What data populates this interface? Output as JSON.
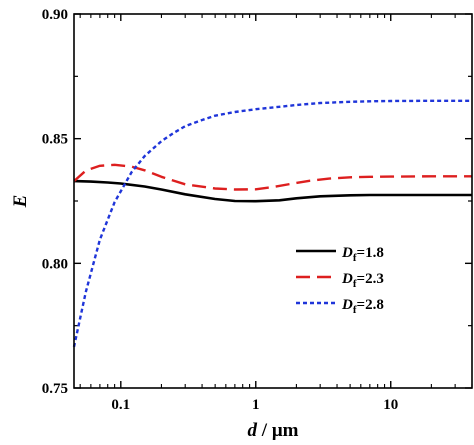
{
  "chart_data": {
    "type": "line",
    "title": "",
    "xlabel": "d / μm",
    "ylabel": "E",
    "x_scale": "log",
    "xlim": [
      0.045,
      40
    ],
    "ylim": [
      0.75,
      0.9
    ],
    "x_ticks": [
      0.1,
      1,
      10
    ],
    "x_tick_labels": [
      "0.1",
      "1",
      "10"
    ],
    "y_ticks": [
      0.75,
      0.8,
      0.85,
      0.9
    ],
    "y_tick_labels": [
      "0.75",
      "0.80",
      "0.85",
      "0.90"
    ],
    "legend": {
      "placement": "center-right",
      "entries": [
        {
          "name_main": "D",
          "name_sub": "f",
          "name_value": "=1.8"
        },
        {
          "name_main": "D",
          "name_sub": "f",
          "name_value": "=2.3"
        },
        {
          "name_main": "D",
          "name_sub": "f",
          "name_value": "=2.8"
        }
      ]
    },
    "series": [
      {
        "name": "Df=1.8",
        "color": "#000000",
        "style": "solid",
        "x": [
          0.045,
          0.06,
          0.08,
          0.1,
          0.15,
          0.2,
          0.3,
          0.5,
          0.7,
          1.0,
          1.5,
          2,
          3,
          5,
          7,
          10,
          20,
          40
        ],
        "y": [
          0.833,
          0.8328,
          0.8324,
          0.832,
          0.8308,
          0.8296,
          0.8277,
          0.8258,
          0.825,
          0.8249,
          0.8253,
          0.8261,
          0.8269,
          0.8273,
          0.8274,
          0.8274,
          0.8274,
          0.8274
        ]
      },
      {
        "name": "Df=2.3",
        "color": "#dd1f1f",
        "style": "dashed",
        "x": [
          0.045,
          0.055,
          0.07,
          0.09,
          0.12,
          0.15,
          0.2,
          0.3,
          0.5,
          0.7,
          1.0,
          1.3,
          1.8,
          2.5,
          3.5,
          5,
          7,
          10,
          20,
          40
        ],
        "y": [
          0.833,
          0.8372,
          0.8391,
          0.8395,
          0.8388,
          0.8373,
          0.8347,
          0.8317,
          0.83,
          0.8296,
          0.8297,
          0.8305,
          0.8318,
          0.8331,
          0.834,
          0.8345,
          0.8347,
          0.8348,
          0.8349,
          0.8349
        ]
      },
      {
        "name": "Df=2.8",
        "color": "#1f35d9",
        "style": "dotted",
        "x": [
          0.045,
          0.055,
          0.07,
          0.09,
          0.12,
          0.15,
          0.2,
          0.25,
          0.3,
          0.4,
          0.5,
          0.7,
          1.0,
          1.5,
          2,
          3,
          5,
          7,
          10,
          20,
          40
        ],
        "y": [
          0.7665,
          0.7885,
          0.8095,
          0.8245,
          0.8365,
          0.843,
          0.849,
          0.8525,
          0.855,
          0.8575,
          0.8592,
          0.8607,
          0.8618,
          0.8628,
          0.8635,
          0.8643,
          0.8648,
          0.865,
          0.8651,
          0.8652,
          0.8652
        ]
      }
    ]
  }
}
